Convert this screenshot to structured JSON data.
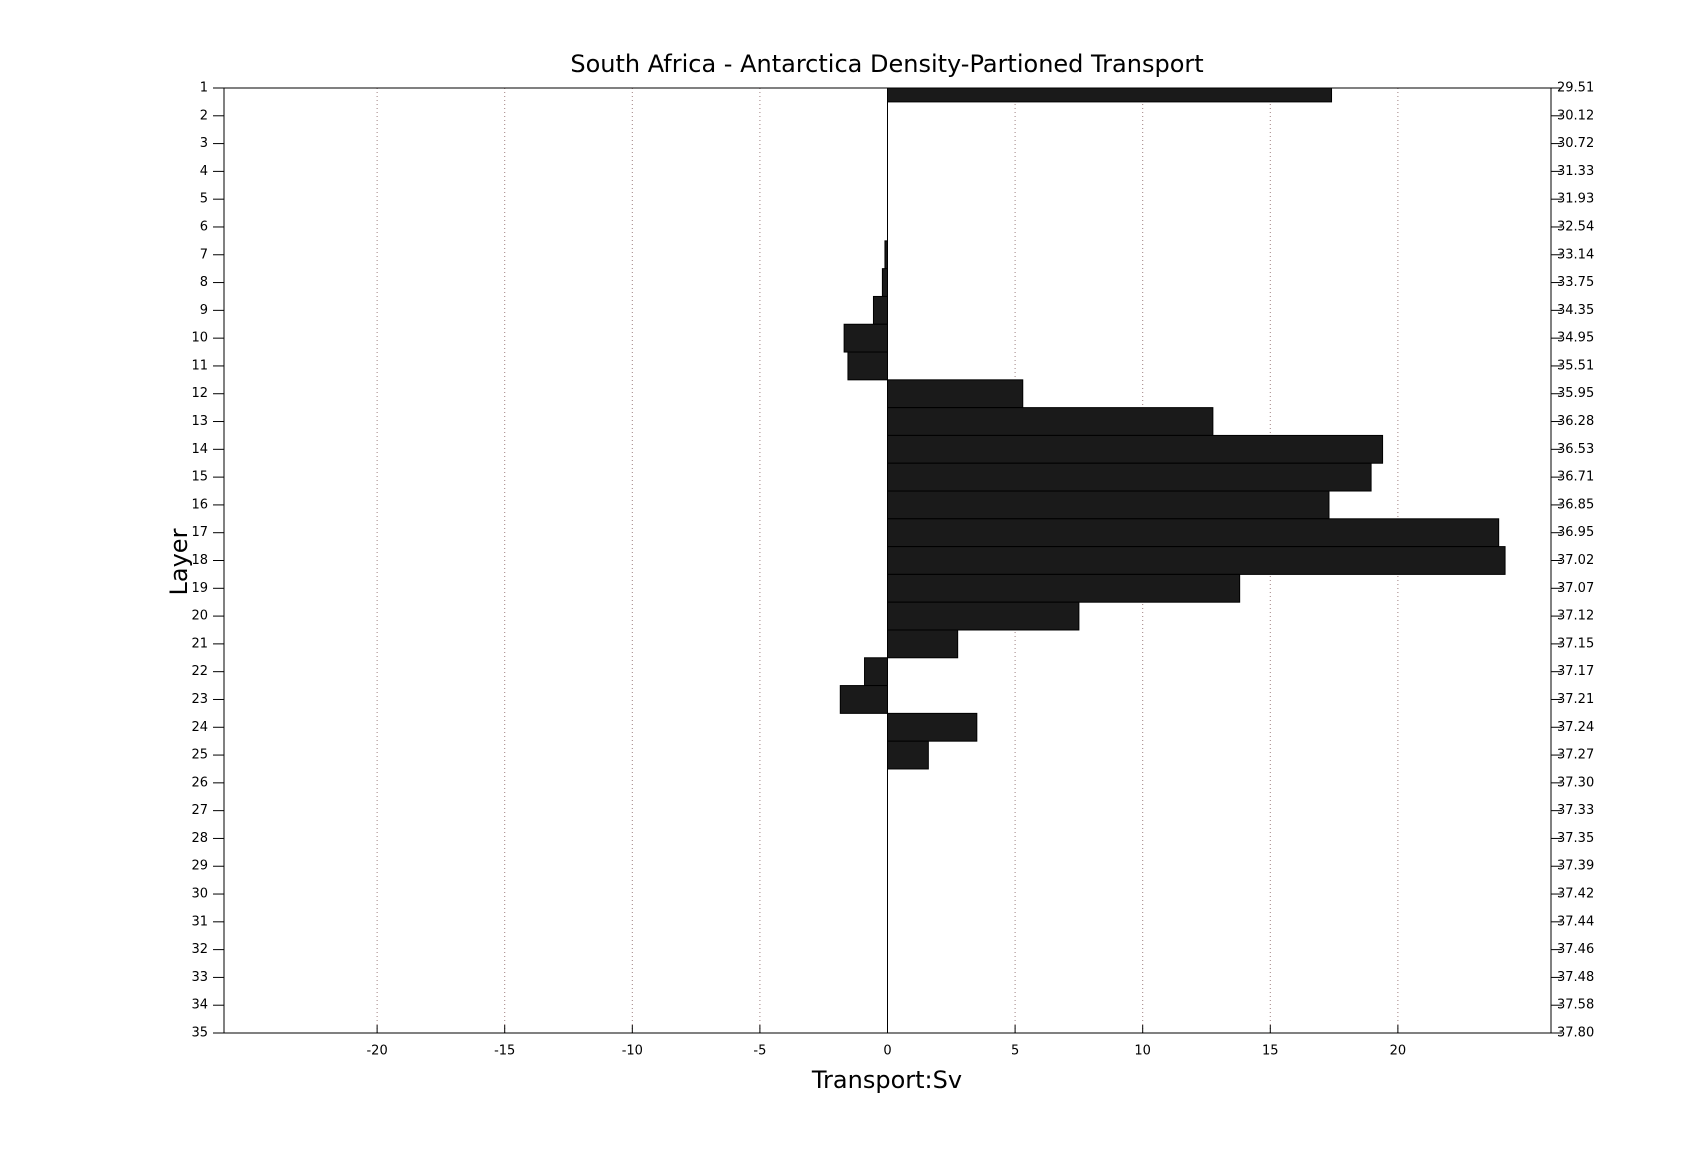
{
  "chart_data": {
    "type": "hbar",
    "title": "South Africa - Antarctica Density-Partioned Transport",
    "xlabel": "Transport:Sv",
    "ylabel": "Layer",
    "categories": [
      "1",
      "2",
      "3",
      "4",
      "5",
      "6",
      "7",
      "8",
      "9",
      "10",
      "11",
      "12",
      "13",
      "14",
      "15",
      "16",
      "17",
      "18",
      "19",
      "20",
      "21",
      "22",
      "23",
      "24",
      "25",
      "26",
      "27",
      "28",
      "29",
      "30",
      "31",
      "32",
      "33",
      "34",
      "35"
    ],
    "right_categories": [
      "29.51",
      "30.12",
      "30.72",
      "31.33",
      "31.93",
      "32.54",
      "33.14",
      "33.75",
      "34.35",
      "34.95",
      "35.51",
      "35.95",
      "36.28",
      "36.53",
      "36.71",
      "36.85",
      "36.95",
      "37.02",
      "37.07",
      "37.12",
      "37.15",
      "37.17",
      "37.21",
      "37.24",
      "37.27",
      "37.30",
      "37.33",
      "37.35",
      "37.39",
      "37.42",
      "37.44",
      "37.46",
      "37.48",
      "37.58",
      "37.80"
    ],
    "values": [
      17.4,
      0,
      0,
      0,
      0,
      0,
      -0.1,
      -0.2,
      -0.55,
      -1.7,
      -1.55,
      5.3,
      12.75,
      19.4,
      18.95,
      17.3,
      23.95,
      24.2,
      13.8,
      7.5,
      2.75,
      -0.9,
      -1.85,
      3.5,
      1.6,
      0,
      0,
      0,
      0,
      0,
      0,
      0,
      0,
      0,
      0
    ],
    "color": "#1a1a1a",
    "xlim": [
      -26,
      26
    ],
    "xticks": [
      -20,
      -15,
      -10,
      -5,
      0,
      5,
      10,
      15,
      20
    ],
    "grid": true
  }
}
